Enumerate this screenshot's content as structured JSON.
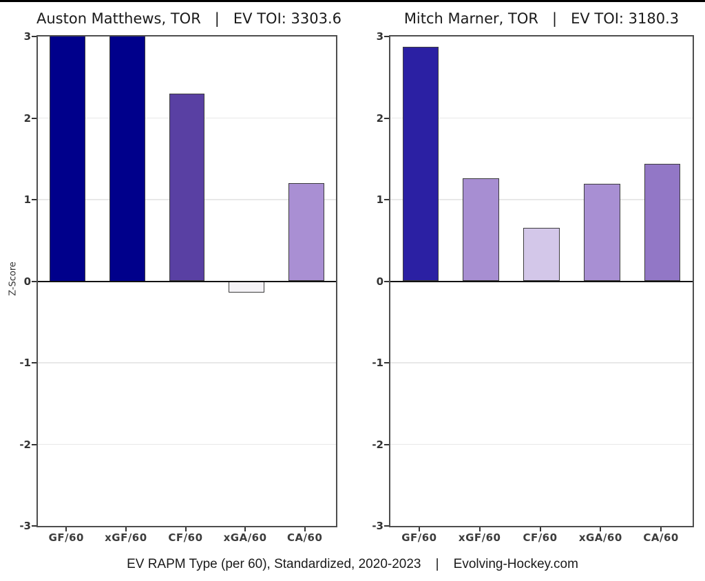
{
  "figure": {
    "ylabel": "Z-Score",
    "caption": "EV RAPM Type (per 60), Standardized, 2020-2023    |    Evolving-Hockey.com"
  },
  "chart_data": [
    {
      "type": "bar",
      "title": "Auston Matthews, TOR   |   EV TOI: 3303.6",
      "player": "Auston Matthews",
      "team": "TOR",
      "ev_toi": 3303.6,
      "categories": [
        "GF/60",
        "xGF/60",
        "CF/60",
        "xGA/60",
        "CA/60"
      ],
      "values": [
        3.0,
        3.0,
        2.3,
        -0.14,
        1.2
      ],
      "bar_colors": [
        "#00008b",
        "#00008b",
        "#5940a3",
        "#f4f2f6",
        "#a98fd3"
      ],
      "xlabel": "",
      "ylabel": "Z-Score",
      "ylim": [
        -3,
        3
      ],
      "yticks": [
        3,
        2,
        1,
        0,
        -1,
        -2,
        -3
      ],
      "grid": true,
      "legend": "none"
    },
    {
      "type": "bar",
      "title": "Mitch Marner, TOR   |   EV TOI: 3180.3",
      "player": "Mitch Marner",
      "team": "TOR",
      "ev_toi": 3180.3,
      "categories": [
        "GF/60",
        "xGF/60",
        "CF/60",
        "xGA/60",
        "CA/60"
      ],
      "values": [
        2.87,
        1.26,
        0.65,
        1.19,
        1.44
      ],
      "bar_colors": [
        "#2b20a3",
        "#a78ed2",
        "#d3c7e9",
        "#a88fd3",
        "#9277c6"
      ],
      "xlabel": "",
      "ylabel": "Z-Score",
      "ylim": [
        -3,
        3
      ],
      "yticks": [
        3,
        2,
        1,
        0,
        -1,
        -2,
        -3
      ],
      "grid": true,
      "legend": "none"
    }
  ]
}
